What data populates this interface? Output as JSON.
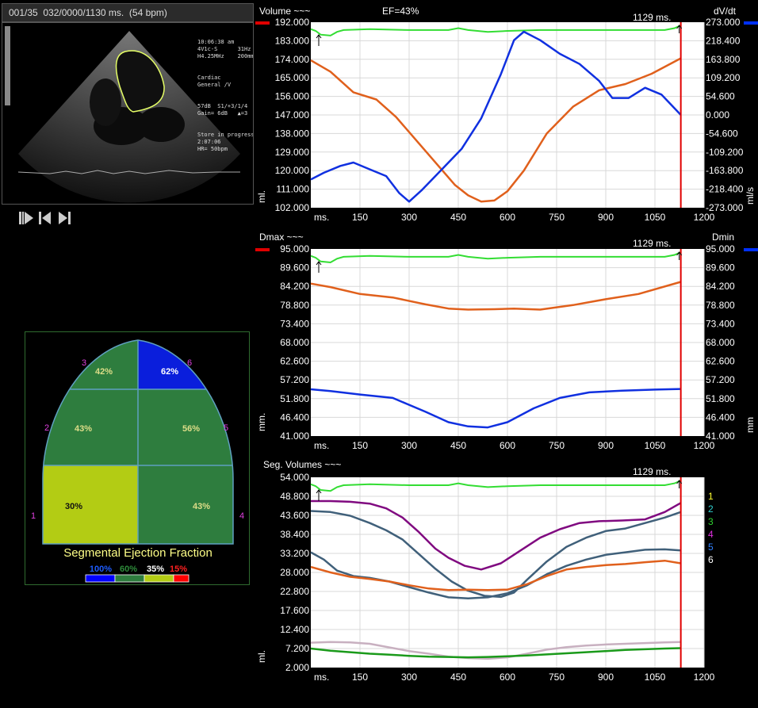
{
  "echo": {
    "header": "001/35  032/0000/1130 ms.  (54 bpm)",
    "info_right": [
      "10:06:38 am",
      "4V1c-S      31Hz",
      "H4.25MHz    200mm",
      "Cardiac",
      "General /V",
      "",
      "57dB  S1/+3/1/4",
      "Gain= 6dB   ▲=3",
      "",
      "Store in progress",
      "2:07:06",
      "HR= 50bpm"
    ],
    "controls": [
      "step-forward-icon",
      "go-to-start-icon",
      "go-to-end-icon"
    ]
  },
  "segments": {
    "title": "Segmental Ejection Fraction",
    "cells": [
      {
        "id": 1,
        "label": "30%",
        "color": "#b3cc14"
      },
      {
        "id": 2,
        "label": "43%",
        "color": "#2e7d3e"
      },
      {
        "id": 3,
        "label": "42%",
        "color": "#2e7d3e"
      },
      {
        "id": 4,
        "label": "43%",
        "color": "#2e7d3e"
      },
      {
        "id": 5,
        "label": "56%",
        "color": "#2e7d3e"
      },
      {
        "id": 6,
        "label": "62%",
        "color": "#0a1edc"
      }
    ],
    "numbers": [
      "1",
      "2",
      "3",
      "4",
      "5",
      "6"
    ],
    "legend": [
      {
        "label": "100%",
        "color": "#1e5cff"
      },
      {
        "label": "60%",
        "color": "#2e8b3a"
      },
      {
        "label": "35%",
        "color": "#ffffff"
      },
      {
        "label": "15%",
        "color": "#ff2020"
      }
    ],
    "legend_bar": [
      "#0000ff",
      "#2e7d3e",
      "#b3cc14",
      "#ff0000"
    ]
  },
  "chart_data": [
    {
      "type": "line",
      "title": "Volume ~~~",
      "subtitle": "EF=43%",
      "time_label": "1129 ms.",
      "right_title": "dV/dt",
      "ylabel_left": "ml.",
      "ylabel_right": "ml/s",
      "xlabel": "ms.",
      "xlim": [
        0,
        1200
      ],
      "ylim": [
        102,
        192
      ],
      "y_ticks": [
        "192.000",
        "183.000",
        "174.000",
        "165.000",
        "156.000",
        "147.000",
        "138.000",
        "129.000",
        "120.000",
        "111.000",
        "102.000"
      ],
      "y2_ticks": [
        "273.000",
        "218.400",
        "163.800",
        "109.200",
        "54.600",
        "0.000",
        "-54.600",
        "-109.200",
        "-163.800",
        "-218.400",
        "-273.000"
      ],
      "x_ticks": [
        "150",
        "300",
        "450",
        "600",
        "750",
        "900",
        "1050",
        "1200"
      ],
      "marker_x": 1129,
      "series": [
        {
          "color": "#e0601c",
          "axis": "left",
          "x": [
            0,
            60,
            130,
            200,
            260,
            320,
            380,
            440,
            480,
            520,
            560,
            600,
            650,
            720,
            800,
            880,
            960,
            1040,
            1129
          ],
          "y": [
            173.5,
            168,
            158,
            154.5,
            146,
            135,
            124,
            113,
            108,
            105,
            105.5,
            110,
            120,
            138,
            151,
            159,
            162,
            167,
            174.5
          ]
        },
        {
          "color": "#1030e0",
          "axis": "right",
          "x": [
            0,
            40,
            90,
            130,
            180,
            230,
            270,
            300,
            340,
            400,
            460,
            520,
            580,
            620,
            650,
            700,
            760,
            820,
            880,
            920,
            970,
            1020,
            1070,
            1129
          ],
          "y": [
            -190,
            -170,
            -150,
            -140,
            -160,
            -180,
            -230,
            -255,
            -220,
            -160,
            -100,
            -10,
            120,
            220,
            245,
            220,
            180,
            150,
            100,
            50,
            50,
            80,
            60,
            0
          ]
        }
      ]
    },
    {
      "type": "line",
      "title": "Dmax ~~~",
      "time_label": "1129 ms.",
      "right_title": "Dmin",
      "ylabel_left": "mm.",
      "ylabel_right": "mm",
      "xlabel": "ms.",
      "xlim": [
        0,
        1200
      ],
      "ylim": [
        41,
        95
      ],
      "y_ticks": [
        "95.000",
        "89.600",
        "84.200",
        "78.800",
        "73.400",
        "68.000",
        "62.600",
        "57.200",
        "51.800",
        "46.400",
        "41.000"
      ],
      "y2_ticks": [
        "95.000",
        "89.600",
        "84.200",
        "78.800",
        "73.400",
        "68.000",
        "62.600",
        "57.200",
        "51.800",
        "46.400",
        "41.000"
      ],
      "x_ticks": [
        "150",
        "300",
        "450",
        "600",
        "750",
        "900",
        "1050",
        "1200"
      ],
      "marker_x": 1129,
      "series": [
        {
          "color": "#e0601c",
          "axis": "left",
          "x": [
            0,
            60,
            150,
            250,
            350,
            420,
            480,
            560,
            620,
            700,
            800,
            900,
            1000,
            1129
          ],
          "y": [
            85,
            84,
            82,
            81,
            79,
            77.8,
            77.5,
            77.6,
            77.8,
            77.5,
            78.8,
            80.5,
            82,
            85.5
          ]
        },
        {
          "color": "#1030e0",
          "axis": "left",
          "x": [
            0,
            60,
            150,
            250,
            350,
            420,
            480,
            540,
            600,
            680,
            760,
            850,
            950,
            1050,
            1129
          ],
          "y": [
            54.5,
            54,
            53,
            52,
            48,
            45,
            43.8,
            43.5,
            45,
            49,
            52,
            53.6,
            54.1,
            54.4,
            54.6
          ]
        }
      ]
    },
    {
      "type": "line",
      "title": "Seg. Volumes ~~~",
      "time_label": "1129 ms.",
      "ylabel_left": "ml.",
      "xlabel": "ms.",
      "xlim": [
        0,
        1200
      ],
      "ylim": [
        2,
        54
      ],
      "y_ticks": [
        "54.000",
        "48.800",
        "43.600",
        "38.400",
        "33.200",
        "28.000",
        "22.800",
        "17.600",
        "12.400",
        "7.200",
        "2.000"
      ],
      "x_ticks": [
        "150",
        "300",
        "450",
        "600",
        "750",
        "900",
        "1050",
        "1200"
      ],
      "marker_x": 1129,
      "segment_labels": [
        {
          "label": "1",
          "color": "#ffff30"
        },
        {
          "label": "2",
          "color": "#30d0d0"
        },
        {
          "label": "3",
          "color": "#30d030"
        },
        {
          "label": "4",
          "color": "#e030e0"
        },
        {
          "label": "5",
          "color": "#3080ff"
        },
        {
          "label": "6",
          "color": "#ffffff"
        }
      ],
      "series": [
        {
          "color": "#800a80",
          "axis": "left",
          "x": [
            0,
            60,
            120,
            180,
            230,
            280,
            330,
            380,
            420,
            470,
            520,
            580,
            640,
            700,
            760,
            820,
            880,
            950,
            1020,
            1080,
            1129
          ],
          "y": [
            47.5,
            47.5,
            47.3,
            46.8,
            45.5,
            43,
            39,
            34.5,
            32,
            29.8,
            28.8,
            30.5,
            34,
            37.5,
            39.8,
            41.5,
            42,
            42.2,
            42.5,
            44.5,
            47
          ]
        },
        {
          "color": "#40607a",
          "axis": "left",
          "x": [
            0,
            60,
            120,
            180,
            230,
            280,
            330,
            380,
            430,
            480,
            530,
            580,
            620,
            660,
            720,
            780,
            840,
            900,
            960,
            1020,
            1080,
            1129
          ],
          "y": [
            44.8,
            44.5,
            43.5,
            41.5,
            39.5,
            37,
            33,
            29,
            25.5,
            23,
            21.6,
            21.3,
            22.5,
            26,
            31,
            35,
            37.5,
            39.3,
            40,
            41.5,
            43,
            44.5
          ]
        },
        {
          "color": "#40607a",
          "axis": "left",
          "x": [
            0,
            40,
            80,
            130,
            180,
            240,
            300,
            360,
            420,
            480,
            540,
            600,
            660,
            720,
            780,
            840,
            900,
            960,
            1020,
            1080,
            1129
          ],
          "y": [
            33.5,
            31.5,
            28.5,
            27,
            26.5,
            25.5,
            24,
            22.5,
            21.2,
            20.9,
            21.2,
            22.3,
            24.5,
            27.5,
            29.8,
            31.5,
            32.8,
            33.5,
            34.2,
            34.3,
            34
          ]
        },
        {
          "color": "#e0601c",
          "axis": "left",
          "x": [
            0,
            60,
            120,
            180,
            240,
            300,
            360,
            420,
            480,
            540,
            600,
            660,
            720,
            780,
            840,
            900,
            960,
            1020,
            1080,
            1129
          ],
          "y": [
            29.5,
            28,
            26.8,
            26.2,
            25.5,
            24.5,
            23.6,
            23.2,
            23.3,
            23.2,
            23.3,
            24.8,
            27,
            28.8,
            29.5,
            30,
            30.3,
            30.8,
            31.2,
            30.5
          ]
        },
        {
          "color": "#c8b0c0",
          "axis": "left",
          "x": [
            0,
            60,
            120,
            180,
            240,
            300,
            360,
            420,
            480,
            540,
            600,
            660,
            720,
            780,
            840,
            900,
            960,
            1020,
            1080,
            1129
          ],
          "y": [
            8.8,
            9.0,
            8.9,
            8.5,
            7.5,
            6.5,
            5.8,
            5.0,
            4.6,
            4.4,
            4.8,
            5.8,
            6.9,
            7.6,
            8.0,
            8.3,
            8.5,
            8.7,
            8.9,
            9.0
          ]
        },
        {
          "color": "#1a9a1a",
          "axis": "left",
          "x": [
            0,
            60,
            120,
            180,
            240,
            300,
            360,
            420,
            480,
            540,
            600,
            660,
            720,
            780,
            840,
            900,
            960,
            1020,
            1080,
            1129
          ],
          "y": [
            7.2,
            6.6,
            6.2,
            5.8,
            5.5,
            5.2,
            5.0,
            4.9,
            4.8,
            4.9,
            5.1,
            5.3,
            5.6,
            5.9,
            6.2,
            6.5,
            6.8,
            7.0,
            7.2,
            7.3
          ]
        }
      ]
    }
  ]
}
